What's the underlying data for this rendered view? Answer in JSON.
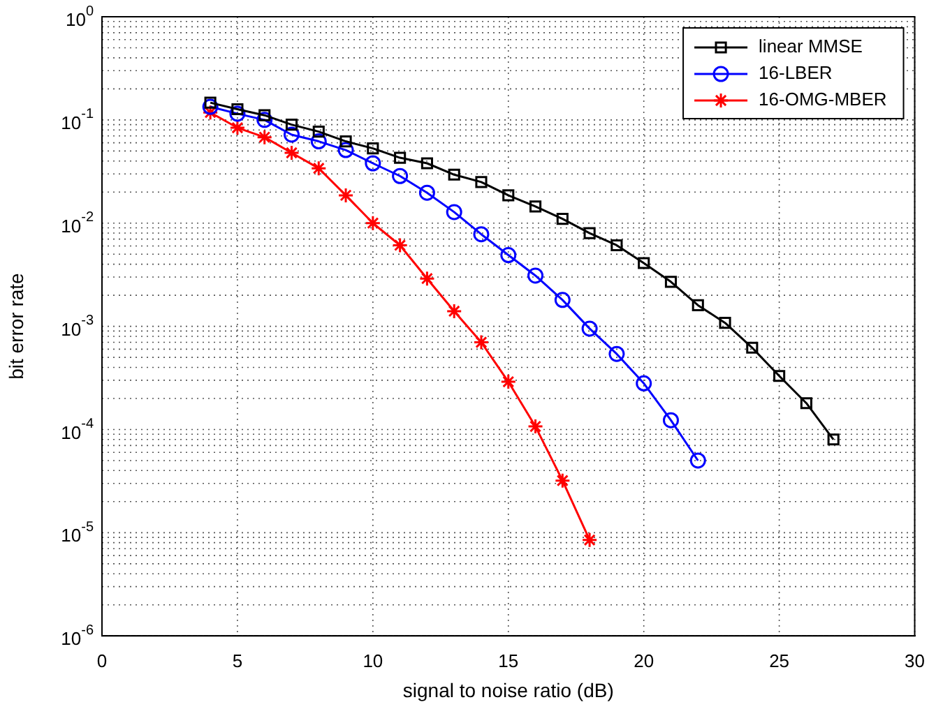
{
  "chart_data": {
    "type": "line",
    "xlabel": "signal to noise ratio (dB)",
    "ylabel": "bit error rate",
    "x": [
      4,
      5,
      6,
      7,
      8,
      9,
      10,
      11,
      12,
      13,
      14,
      15,
      16,
      17,
      18,
      19,
      20,
      21,
      22,
      23,
      24,
      25,
      26,
      27
    ],
    "series": [
      {
        "name": "linear MMSE",
        "color": "#000000",
        "marker": "square",
        "values": [
          0.147,
          0.127,
          0.111,
          0.09,
          0.077,
          0.062,
          0.053,
          0.043,
          0.038,
          0.0295,
          0.025,
          0.0186,
          0.0145,
          0.011,
          0.008,
          0.0061,
          0.0041,
          0.0027,
          0.0016,
          0.00108,
          0.00062,
          0.00033,
          0.00018,
          8e-05
        ]
      },
      {
        "name": "16-LBER",
        "color": "#0000ff",
        "marker": "circle",
        "values": [
          0.134,
          0.115,
          0.1,
          0.072,
          0.062,
          0.051,
          0.038,
          0.0286,
          0.0197,
          0.0128,
          0.0078,
          0.0049,
          0.0031,
          0.0018,
          0.00095,
          0.00054,
          0.00028,
          0.000123,
          5e-05,
          null,
          null,
          null,
          null,
          null
        ]
      },
      {
        "name": "16-OMG-MBER",
        "color": "#ff0000",
        "marker": "cross",
        "values": [
          0.118,
          0.084,
          0.068,
          0.048,
          0.034,
          0.0186,
          0.01,
          0.0061,
          0.0029,
          0.0014,
          0.0007,
          0.00029,
          0.000107,
          3.2e-05,
          8.5e-06,
          null,
          null,
          null,
          null,
          null,
          null,
          null,
          null,
          null
        ]
      }
    ],
    "log": "y",
    "xlim": [
      0,
      30
    ],
    "xticks": [
      0,
      5,
      10,
      15,
      20,
      25,
      30
    ],
    "ylim": [
      1e-06,
      1
    ],
    "yticks": [
      {
        "value": 1e-06,
        "label": "10$^{-6}$"
      },
      {
        "value": 1e-05,
        "label": "10$^{-5}$"
      },
      {
        "value": 0.0001,
        "label": "10$^{-4}$"
      },
      {
        "value": 0.001,
        "label": "10$^{-3}$"
      },
      {
        "value": 0.01,
        "label": "10$^{-2}$"
      },
      {
        "value": 0.1,
        "label": "10$^{-1}$"
      },
      {
        "value": 1,
        "label": "10$^{0}$"
      }
    ],
    "grid": true,
    "legend": "top right",
    "line_style": "solid"
  }
}
